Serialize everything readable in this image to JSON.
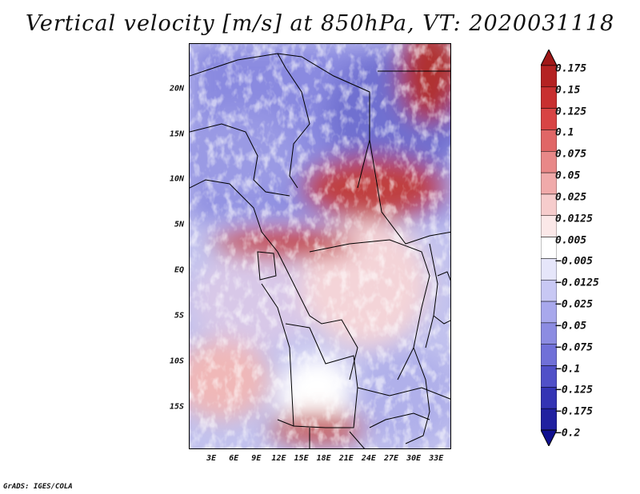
{
  "title": "Vertical velocity [m/s] at 850hPa, VT: 2020031118",
  "credit": "GrADS: IGES/COLA",
  "lat_labels": [
    "20N",
    "15N",
    "10N",
    "5N",
    "EQ",
    "5S",
    "10S",
    "15S"
  ],
  "lat_values": [
    20,
    15,
    10,
    5,
    0,
    -5,
    -10,
    -15
  ],
  "lon_labels": [
    "3E",
    "6E",
    "9E",
    "12E",
    "15E",
    "18E",
    "21E",
    "24E",
    "27E",
    "30E",
    "33E"
  ],
  "lon_values": [
    3,
    6,
    9,
    12,
    15,
    18,
    21,
    24,
    27,
    30,
    33
  ],
  "map_extent": {
    "lon_min": 0,
    "lon_max": 35,
    "lat_min": -19.7,
    "lat_max": 25
  },
  "colorbar": {
    "labels": [
      "0.175",
      "0.15",
      "0.125",
      "0.1",
      "0.075",
      "0.05",
      "0.025",
      "0.0125",
      "0.005",
      "−0.005",
      "−0.0125",
      "−0.025",
      "−0.05",
      "−0.075",
      "−0.1",
      "−0.125",
      "−0.175",
      "−0.2"
    ],
    "colors": [
      "#a01818",
      "#b42222",
      "#c83030",
      "#d84444",
      "#e06666",
      "#e88888",
      "#f0aaaa",
      "#f6cccc",
      "#fbe8e8",
      "#ffffff",
      "#e6e6fa",
      "#c8c8f4",
      "#a8a8ec",
      "#8c8ce2",
      "#7070d8",
      "#5050c8",
      "#3434b4",
      "#2020a0",
      "#101090"
    ]
  }
}
